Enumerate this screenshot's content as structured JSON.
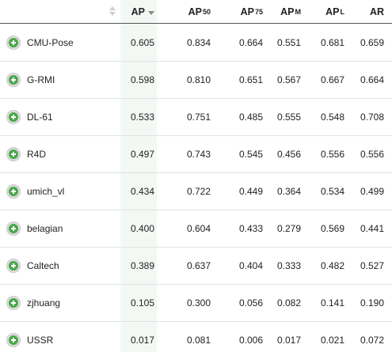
{
  "columns": [
    {
      "key": "ap",
      "base": "AP",
      "sup": ""
    },
    {
      "key": "ap50",
      "base": "AP",
      "sup": "50"
    },
    {
      "key": "ap75",
      "base": "AP",
      "sup": "75"
    },
    {
      "key": "apm",
      "base": "AP",
      "sup": "M"
    },
    {
      "key": "apl",
      "base": "AP",
      "sup": "L"
    },
    {
      "key": "ar",
      "base": "AR",
      "sup": ""
    }
  ],
  "sorted_column": "ap",
  "sort_direction": "descending",
  "rows": [
    {
      "name": "CMU-Pose",
      "ap": "0.605",
      "ap50": "0.834",
      "ap75": "0.664",
      "apm": "0.551",
      "apl": "0.681",
      "ar": "0.659"
    },
    {
      "name": "G-RMI",
      "ap": "0.598",
      "ap50": "0.810",
      "ap75": "0.651",
      "apm": "0.567",
      "apl": "0.667",
      "ar": "0.664"
    },
    {
      "name": "DL-61",
      "ap": "0.533",
      "ap50": "0.751",
      "ap75": "0.485",
      "apm": "0.555",
      "apl": "0.548",
      "ar": "0.708"
    },
    {
      "name": "R4D",
      "ap": "0.497",
      "ap50": "0.743",
      "ap75": "0.545",
      "apm": "0.456",
      "apl": "0.556",
      "ar": "0.556"
    },
    {
      "name": "umich_vl",
      "ap": "0.434",
      "ap50": "0.722",
      "ap75": "0.449",
      "apm": "0.364",
      "apl": "0.534",
      "ar": "0.499"
    },
    {
      "name": "belagian",
      "ap": "0.400",
      "ap50": "0.604",
      "ap75": "0.433",
      "apm": "0.279",
      "apl": "0.569",
      "ar": "0.441"
    },
    {
      "name": "Caltech",
      "ap": "0.389",
      "ap50": "0.637",
      "ap75": "0.404",
      "apm": "0.333",
      "apl": "0.482",
      "ar": "0.527"
    },
    {
      "name": "zjhuang",
      "ap": "0.105",
      "ap50": "0.300",
      "ap75": "0.056",
      "apm": "0.082",
      "apl": "0.141",
      "ar": "0.190"
    },
    {
      "name": "USSR",
      "ap": "0.017",
      "ap50": "0.081",
      "ap75": "0.006",
      "apm": "0.017",
      "apl": "0.021",
      "ar": "0.072"
    }
  ],
  "colors": {
    "expand_icon": "#4aa84a",
    "sorted_column_bg": "#f4f8f4",
    "row_divider": "#e2e2e2"
  },
  "icons": {
    "row_expand": "plus-circle-icon",
    "sort_both": "sort-both-icon",
    "sort_desc": "sort-desc-icon"
  }
}
